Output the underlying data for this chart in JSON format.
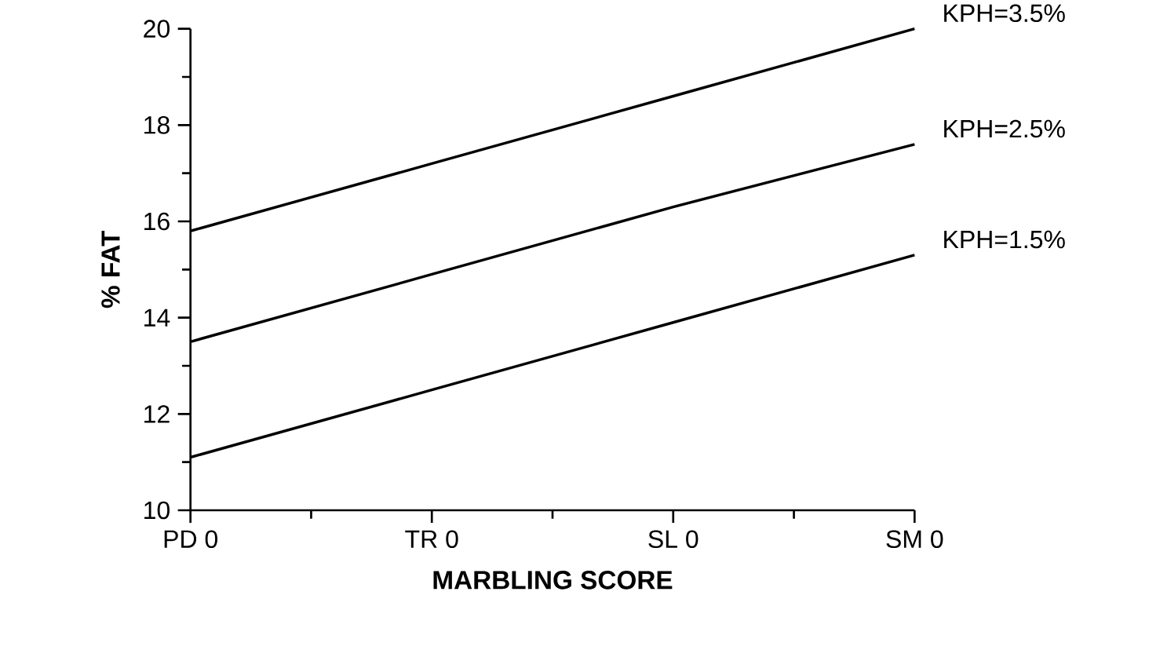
{
  "chart_data": {
    "type": "line",
    "xlabel": "MARBLING SCORE",
    "ylabel": "% FAT",
    "categories": [
      "PD 0",
      "TR 0",
      "SL 0",
      "SM 0"
    ],
    "series": [
      {
        "name": "KPH=3.5%",
        "color": "#000000",
        "values": [
          15.8,
          17.2,
          18.6,
          20.0
        ]
      },
      {
        "name": "KPH=2.5%",
        "color": "#000000",
        "values": [
          13.5,
          14.9,
          16.3,
          17.6
        ]
      },
      {
        "name": "KPH=1.5%",
        "color": "#000000",
        "values": [
          11.1,
          12.5,
          13.9,
          15.3
        ]
      }
    ],
    "ylim": [
      10,
      20
    ],
    "yticks": [
      10,
      12,
      14,
      16,
      18,
      20
    ],
    "grid": false,
    "legend": false,
    "marker": "none",
    "line_style": "solid"
  }
}
